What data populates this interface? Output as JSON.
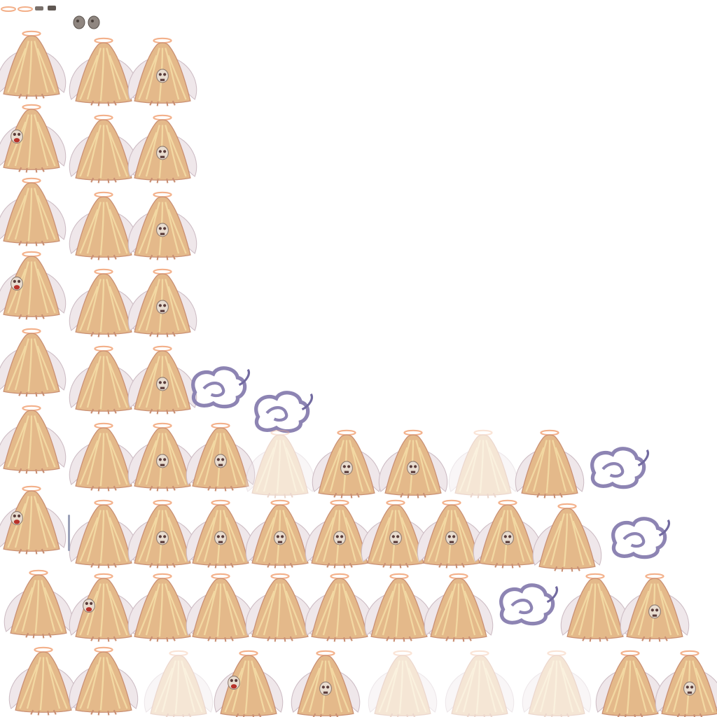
{
  "sheet": {
    "subject": "haloed-long-haired-angel-sprite",
    "colors": {
      "hair_light": "#f2d8a2",
      "hair_mid": "#e4b98a",
      "hair_dark": "#c98f73",
      "wing": "#efe7ea",
      "wing_shade": "#cdbcc4",
      "halo": "#f3b08a",
      "skin": "#dba88f",
      "skull": "#e9ddd0",
      "skull_dark": "#5a3c3a",
      "mouth_red": "#b8322a",
      "smoke": "#8d84b3",
      "smoke_dark": "#726aa0",
      "staff": "#9aa0b8"
    },
    "top_strip": [
      "halo-oval",
      "halo-oval",
      "rock-small",
      "rock-small",
      "rock",
      "rock"
    ]
  }
}
